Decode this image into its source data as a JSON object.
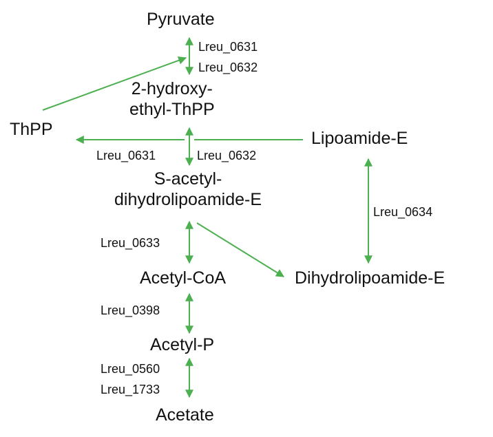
{
  "metabolites": {
    "pyruvate": "Pyruvate",
    "hydroxyethyl_thpp": [
      "2-hydroxy-",
      "ethyl-ThPP"
    ],
    "thpp": "ThPP",
    "lipoamide_e": "Lipoamide-E",
    "s_acetyl_dihydrolipoamide_e": [
      "S-acetyl-",
      "dihydrolipoamide-E"
    ],
    "acetyl_coa": "Acetyl-CoA",
    "dihydrolipoamide_e": "Dihydrolipoamide-E",
    "acetyl_p": "Acetyl-P",
    "acetate": "Acetate"
  },
  "enzymes": {
    "pyruvate_step": [
      "Lreu_0631",
      "Lreu_0632"
    ],
    "decarboxylation_left": "Lreu_0631",
    "decarboxylation_right": "Lreu_0632",
    "lipoamide_cycle": "Lreu_0634",
    "acetyl_coa_step": "Lreu_0633",
    "acetyl_p_step": "Lreu_0398",
    "acetate_step": [
      "Lreu_0560",
      "Lreu_1733"
    ]
  },
  "colors": {
    "arrow": "#4caf50",
    "text": "#111111"
  }
}
